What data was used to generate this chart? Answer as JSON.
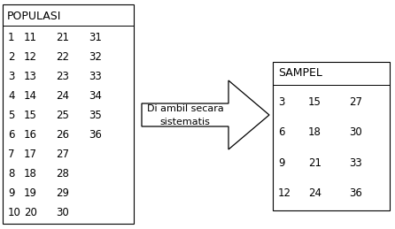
{
  "populasi_title": "POPULASI",
  "populasi_rows": [
    [
      "1",
      "11",
      "21",
      "31"
    ],
    [
      "2",
      "12",
      "22",
      "32"
    ],
    [
      "3",
      "13",
      "23",
      "33"
    ],
    [
      "4",
      "14",
      "24",
      "34"
    ],
    [
      "5",
      "15",
      "25",
      "35"
    ],
    [
      "6",
      "16",
      "26",
      "36"
    ],
    [
      "7",
      "17",
      "27",
      ""
    ],
    [
      "8",
      "18",
      "28",
      ""
    ],
    [
      "9",
      "19",
      "29",
      ""
    ],
    [
      "10",
      "20",
      "30",
      ""
    ]
  ],
  "sampel_title": "SAMPEL",
  "sampel_rows": [
    [
      "3",
      "15",
      "27"
    ],
    [
      "6",
      "18",
      "30"
    ],
    [
      "9",
      "21",
      "33"
    ],
    [
      "12",
      "24",
      "36"
    ]
  ],
  "arrow_label_line1": "Di ambil secara",
  "arrow_label_line2": "sistematis",
  "bg_color": "#ffffff",
  "text_color": "#000000",
  "box_color": "#000000",
  "font_size": 8.5,
  "title_font_size": 9.0
}
